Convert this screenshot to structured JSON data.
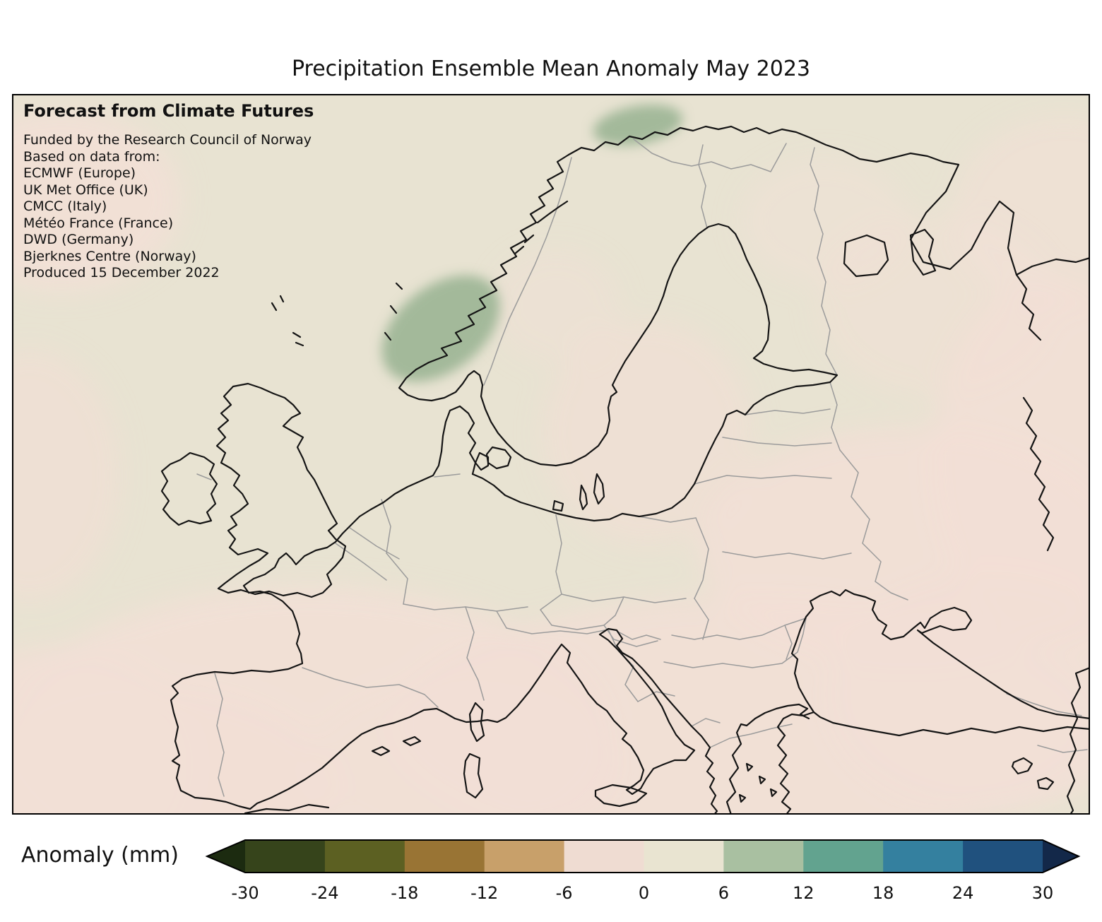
{
  "title": "Precipitation Ensemble Mean Anomaly May 2023",
  "annotation": {
    "heading": "Forecast from Climate Futures",
    "lines": [
      "Funded by the Research Council of Norway",
      "Based on data from:",
      "ECMWF (Europe)",
      "UK Met Office (UK)",
      "CMCC (Italy)",
      "Météo France (France)",
      "DWD (Germany)",
      "Bjerknes Centre (Norway)",
      "Produced 15 December 2022"
    ]
  },
  "map": {
    "background_color": "#e8e3d2",
    "negative_patch_color": "#f2dfd6",
    "positive_patch_color": "#9fb697",
    "coastline_color": "#151515",
    "border_color": "#9b9b9b"
  },
  "colorbar": {
    "label": "Anomaly (mm)",
    "ticks": [
      "-30",
      "-24",
      "-18",
      "-12",
      "-6",
      "0",
      "6",
      "12",
      "18",
      "24",
      "30"
    ],
    "segment_colors": [
      "#36441b",
      "#5c6022",
      "#997434",
      "#c8a06a",
      "#efdcd2",
      "#e9e4d1",
      "#a9c0a1",
      "#62a38f",
      "#34809f",
      "#20517e"
    ],
    "under_color": "#1c2b10",
    "over_color": "#132849"
  },
  "chart_data": {
    "type": "heatmap",
    "title": "Precipitation Ensemble Mean Anomaly May 2023",
    "colorbar_label": "Anomaly (mm)",
    "value_range": [
      -30,
      30
    ],
    "colorbar_ticks": [
      -30,
      -24,
      -18,
      -12,
      -6,
      0,
      6,
      12,
      18,
      24,
      30
    ],
    "regions": [
      {
        "area": "Western Norway coast",
        "anomaly_mm": 9
      },
      {
        "area": "Northern Norway coast",
        "anomaly_mm": 8
      },
      {
        "area": "Central Europe and most of Scandinavia",
        "anomaly_mm": 0
      },
      {
        "area": "Iberia, southern France, Mediterranean, Balkans",
        "anomaly_mm": -3
      },
      {
        "area": "Eastern Europe and western Russia",
        "anomaly_mm": -3
      }
    ]
  }
}
